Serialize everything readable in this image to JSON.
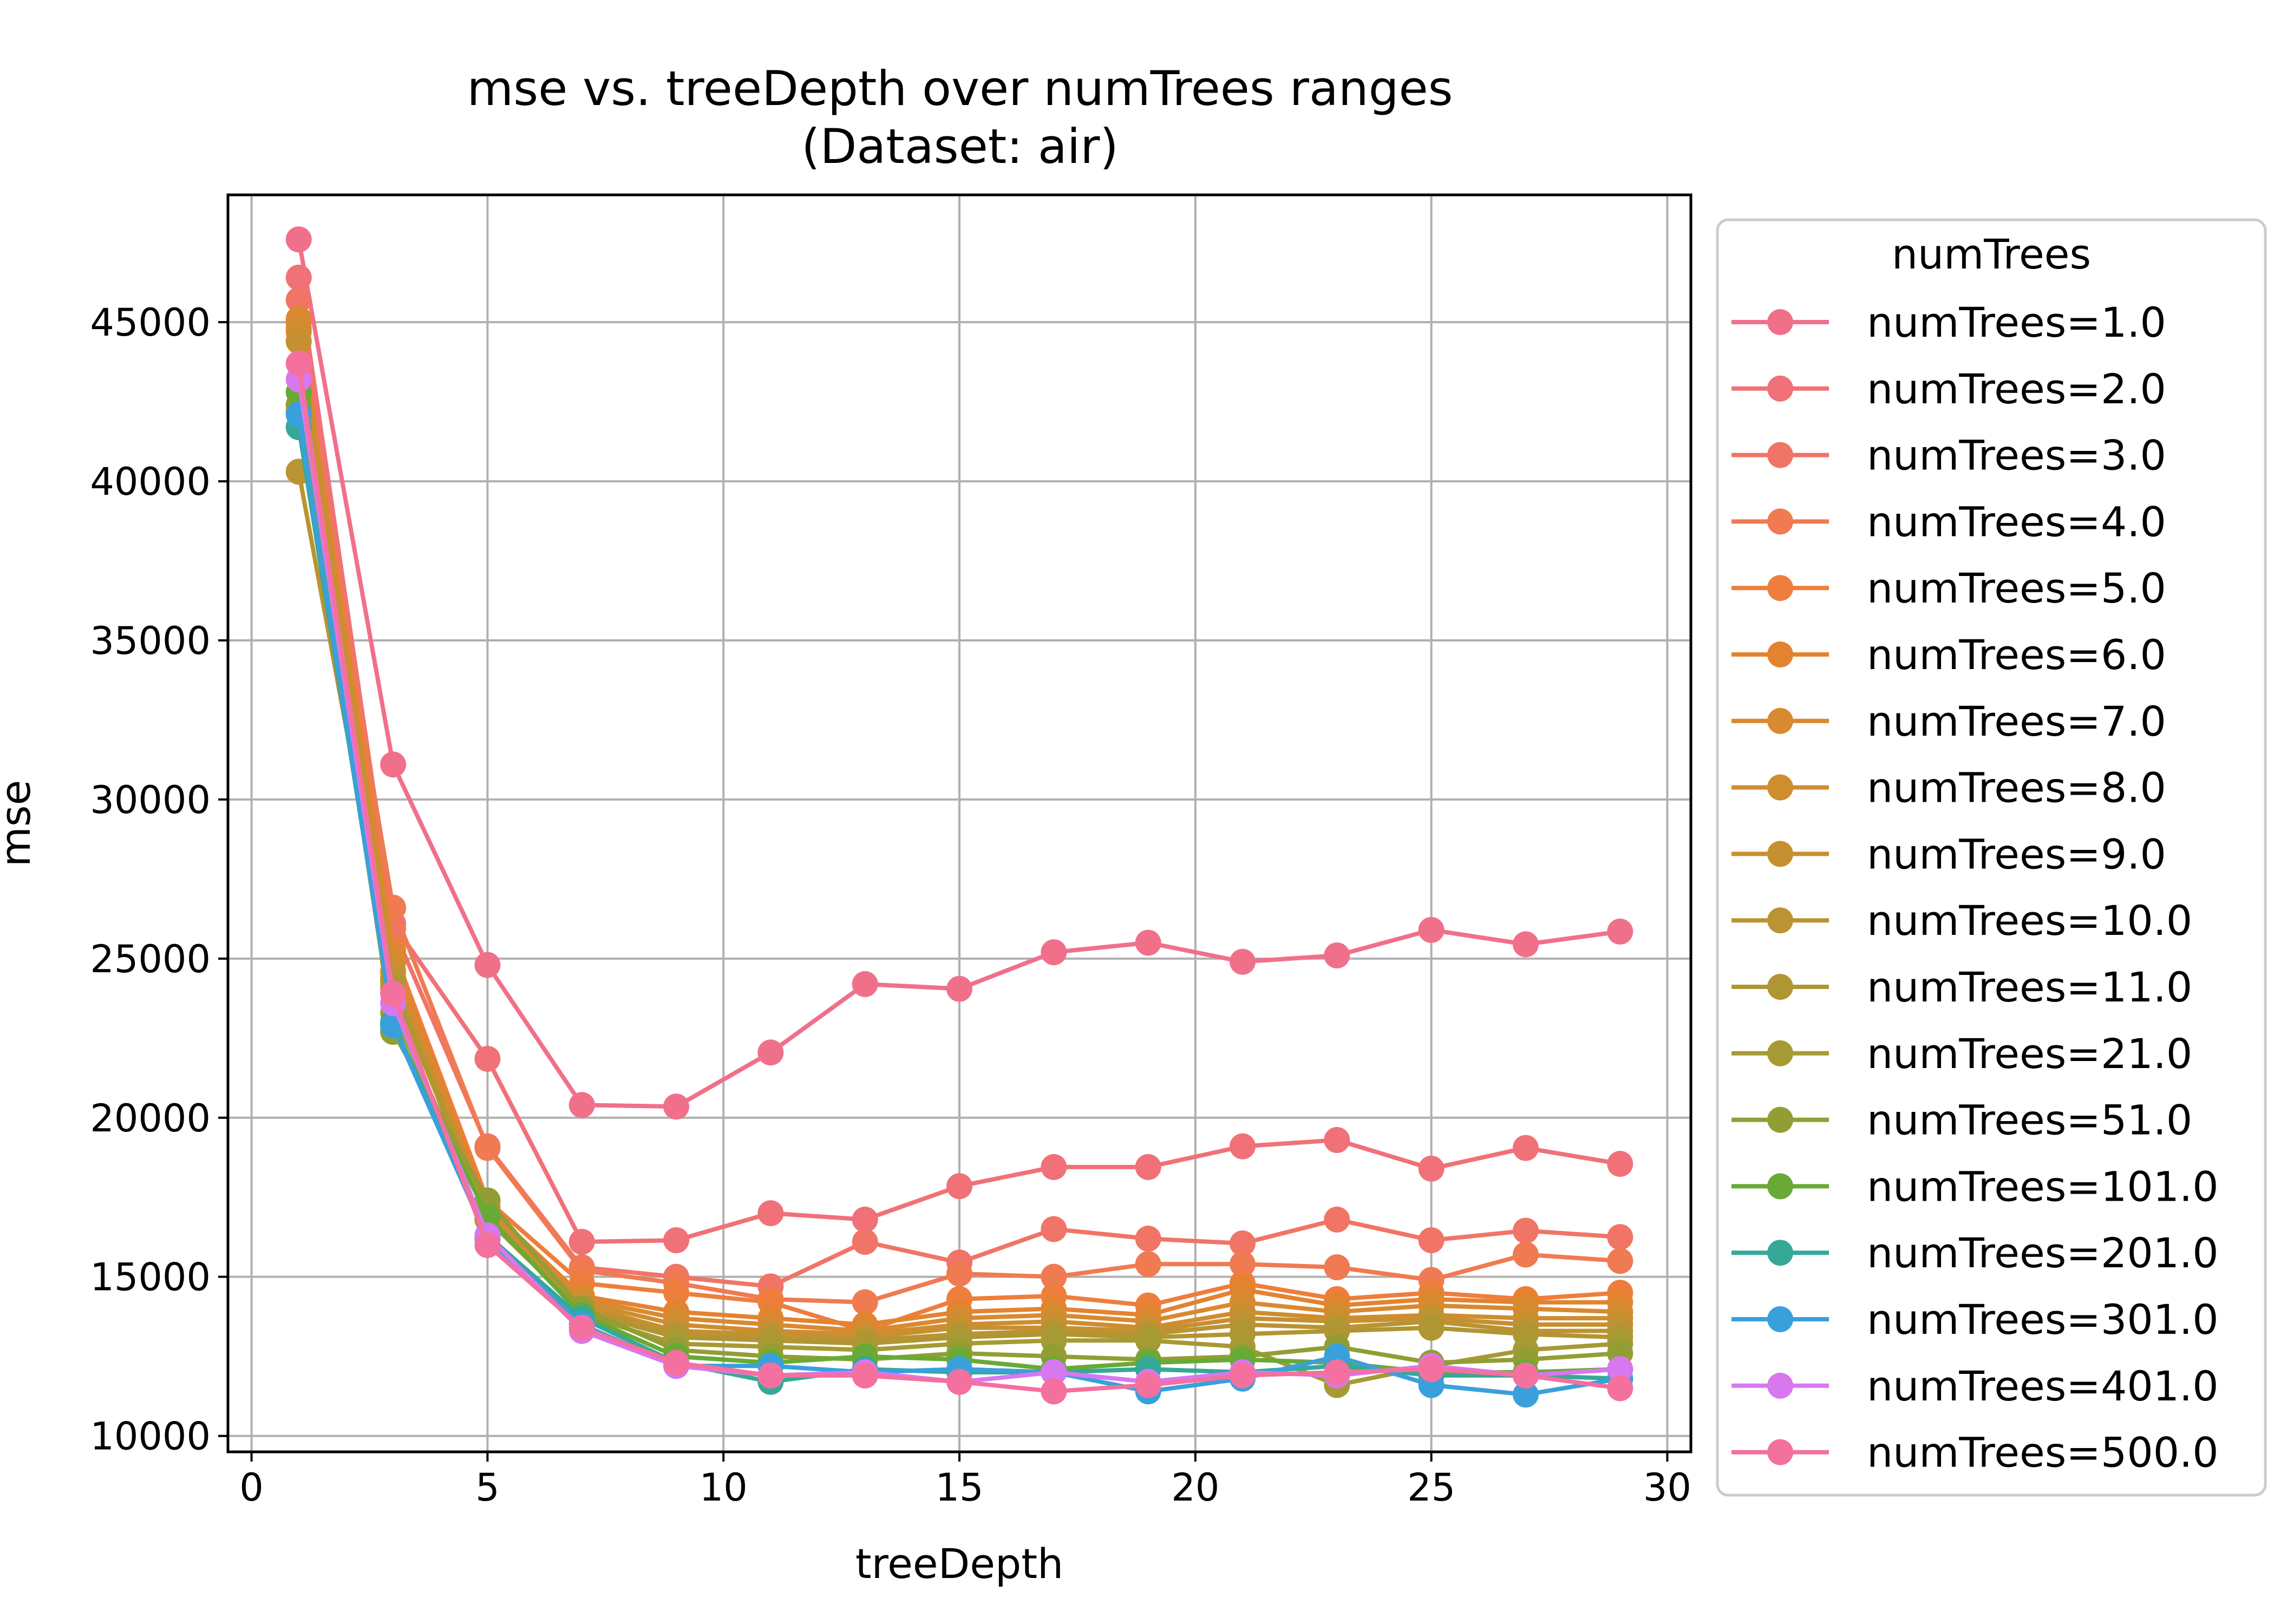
{
  "chart_data": {
    "type": "line",
    "title": "mse vs. treeDepth over numTrees ranges",
    "subtitle": "(Dataset: air)",
    "xlabel": "treeDepth",
    "ylabel": "mse",
    "xlim": [
      -0.5,
      30.5
    ],
    "ylim": [
      9500,
      49000
    ],
    "xticks": [
      0,
      5,
      10,
      15,
      20,
      25,
      30
    ],
    "yticks": [
      10000,
      15000,
      20000,
      25000,
      30000,
      35000,
      40000,
      45000
    ],
    "xtick_labels": [
      "0",
      "5",
      "10",
      "15",
      "20",
      "25",
      "30"
    ],
    "ytick_labels": [
      "10000",
      "15000",
      "20000",
      "25000",
      "30000",
      "35000",
      "40000",
      "45000"
    ],
    "grid": true,
    "legend_title": "numTrees",
    "legend_position": "outside right",
    "x": [
      1,
      3,
      5,
      7,
      9,
      11,
      13,
      15,
      17,
      19,
      21,
      23,
      25,
      27,
      29
    ],
    "series": [
      {
        "name": "numTrees=1.0",
        "color": "#f0708a",
        "values": [
          47600,
          31100,
          24800,
          20400,
          20350,
          22050,
          24200,
          24050,
          25200,
          25500,
          24900,
          25100,
          25900,
          25450,
          25850
        ]
      },
      {
        "name": "numTrees=2.0",
        "color": "#f07178",
        "values": [
          46400,
          26100,
          21850,
          16100,
          16150,
          17000,
          16800,
          17850,
          18450,
          18450,
          19100,
          19300,
          18400,
          19050,
          18550
        ]
      },
      {
        "name": "numTrees=3.0",
        "color": "#f07566",
        "values": [
          45700,
          25950,
          19100,
          15300,
          15000,
          14700,
          16100,
          15450,
          16500,
          16200,
          16050,
          16800,
          16150,
          16450,
          16250
        ]
      },
      {
        "name": "numTrees=4.0",
        "color": "#f07a52",
        "values": [
          44400,
          26600,
          19050,
          15200,
          14800,
          14300,
          14200,
          15100,
          15000,
          15400,
          15400,
          15300,
          14900,
          15700,
          15500
        ]
      },
      {
        "name": "numTrees=5.0",
        "color": "#ee7e3c",
        "values": [
          45000,
          25300,
          17400,
          14800,
          14500,
          14200,
          13300,
          14300,
          14400,
          14100,
          14800,
          14300,
          14500,
          14300,
          14500
        ]
      },
      {
        "name": "numTrees=6.0",
        "color": "#e4832f",
        "values": [
          44800,
          25100,
          17200,
          14400,
          13900,
          13700,
          13500,
          13900,
          14000,
          13800,
          14600,
          14100,
          14300,
          14200,
          14200
        ]
      },
      {
        "name": "numTrees=7.0",
        "color": "#d9892f",
        "values": [
          45100,
          24900,
          17100,
          14300,
          13700,
          13500,
          13300,
          13700,
          13800,
          13600,
          14200,
          13900,
          14100,
          14000,
          13900
        ]
      },
      {
        "name": "numTrees=8.0",
        "color": "#cf8d30",
        "values": [
          44700,
          24600,
          17000,
          14200,
          13500,
          13300,
          13200,
          13500,
          13600,
          13400,
          13900,
          13700,
          13800,
          13700,
          13700
        ]
      },
      {
        "name": "numTrees=9.0",
        "color": "#c69031",
        "values": [
          44400,
          24400,
          16900,
          14100,
          13300,
          13200,
          13100,
          13400,
          13400,
          13300,
          13700,
          13600,
          13700,
          13500,
          13500
        ]
      },
      {
        "name": "numTrees=10.0",
        "color": "#bb9332",
        "values": [
          40300,
          24300,
          16800,
          14000,
          13200,
          13100,
          13000,
          13200,
          13300,
          13200,
          13500,
          13400,
          13600,
          13300,
          13300
        ]
      },
      {
        "name": "numTrees=11.0",
        "color": "#b09633",
        "values": [
          42400,
          24100,
          16800,
          13900,
          13100,
          13000,
          12900,
          13100,
          13200,
          13100,
          13200,
          13300,
          13400,
          13200,
          13100
        ]
      },
      {
        "name": "numTrees=21.0",
        "color": "#a69a34",
        "values": [
          42200,
          23300,
          16900,
          13800,
          12900,
          12800,
          12700,
          12900,
          13000,
          13000,
          12800,
          11600,
          12200,
          12700,
          12900
        ]
      },
      {
        "name": "numTrees=51.0",
        "color": "#929e34",
        "values": [
          42400,
          22700,
          17400,
          14000,
          12700,
          12500,
          12400,
          12600,
          12500,
          12400,
          12500,
          12800,
          12300,
          12400,
          12600
        ]
      },
      {
        "name": "numTrees=101.0",
        "color": "#68aa35",
        "values": [
          42800,
          22900,
          16900,
          13800,
          12500,
          12300,
          12500,
          12400,
          12100,
          12300,
          12400,
          12300,
          12000,
          12000,
          12100
        ]
      },
      {
        "name": "numTrees=201.0",
        "color": "#36a898",
        "values": [
          41700,
          23000,
          16300,
          13700,
          12300,
          11700,
          12100,
          12000,
          12000,
          12100,
          12000,
          12200,
          11900,
          11900,
          11800
        ]
      },
      {
        "name": "numTrees=301.0",
        "color": "#39a0dc",
        "values": [
          42100,
          22900,
          16200,
          13500,
          12200,
          12200,
          12000,
          12100,
          12000,
          11400,
          11800,
          12500,
          11600,
          11300,
          11800
        ]
      },
      {
        "name": "numTrees=401.0",
        "color": "#d778ee",
        "values": [
          43200,
          23600,
          16300,
          13300,
          12200,
          11900,
          12000,
          11700,
          12000,
          11700,
          12000,
          11900,
          12200,
          11900,
          12100
        ]
      },
      {
        "name": "numTrees=500.0",
        "color": "#f4709f",
        "values": [
          43700,
          23900,
          16000,
          13400,
          12300,
          11900,
          11900,
          11700,
          11400,
          11600,
          11900,
          12000,
          12100,
          11900,
          11500
        ]
      }
    ]
  }
}
